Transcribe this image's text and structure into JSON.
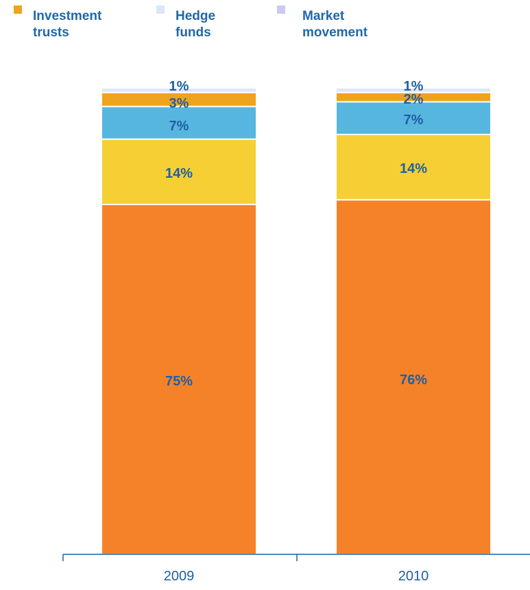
{
  "legend": [
    {
      "label": "Investment\ntrusts",
      "color": "#f0a31e"
    },
    {
      "label": "Hedge\nfunds",
      "color": "#d9e8f4"
    },
    {
      "label": "Market\nmovement",
      "color": "#c9c9f2"
    }
  ],
  "colors": {
    "segments": [
      "#f58229",
      "#f5cf34",
      "#57b6df",
      "#f0a31e",
      "#dde8f1"
    ],
    "label_text": "#1f5fa3",
    "axis": "#1f5fa3"
  },
  "chart_data": {
    "type": "bar",
    "stacked": true,
    "categories": [
      "2009",
      "2010"
    ],
    "series": [
      {
        "values": [
          75,
          76
        ],
        "labels": [
          "75%",
          "76%"
        ]
      },
      {
        "values": [
          14,
          14
        ],
        "labels": [
          "14%",
          "14%"
        ]
      },
      {
        "values": [
          7,
          7
        ],
        "labels": [
          "7%",
          "7%"
        ]
      },
      {
        "values": [
          3,
          2
        ],
        "labels": [
          "3%",
          "2%"
        ]
      },
      {
        "values": [
          1,
          1
        ],
        "labels": [
          "1%",
          "1%"
        ]
      }
    ],
    "ylim": [
      0,
      100
    ],
    "grid": false,
    "legend_position": "top-left"
  }
}
